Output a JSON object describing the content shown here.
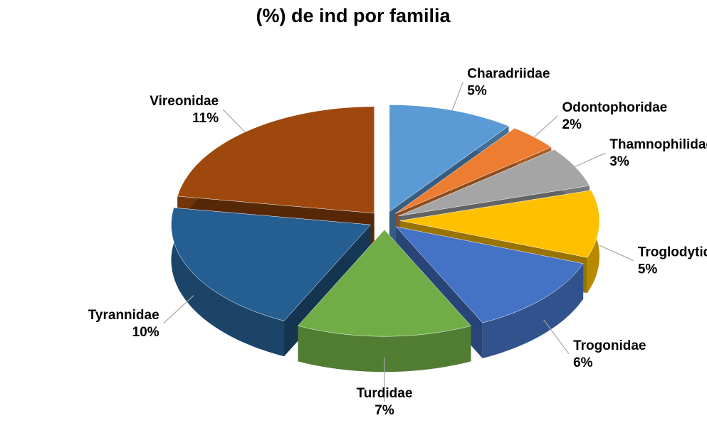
{
  "chart_data": {
    "type": "pie",
    "title": "(%) de ind por familia",
    "categories": [
      "Charadriidae",
      "Odontophoridae",
      "Thamnophilidae",
      "Troglodytidae",
      "Trogonidae",
      "Turdidae",
      "Tyrannidae",
      "Vireonidae"
    ],
    "values": [
      5,
      2,
      3,
      5,
      6,
      7,
      10,
      11
    ],
    "value_labels": [
      "5%",
      "2%",
      "3%",
      "5%",
      "6%",
      "7%",
      "10%",
      "11%"
    ],
    "colors": [
      "#5b9bd5",
      "#ed7d31",
      "#a5a5a5",
      "#ffc000",
      "#4472c4",
      "#70ad47",
      "#255e91",
      "#9e480e"
    ]
  }
}
